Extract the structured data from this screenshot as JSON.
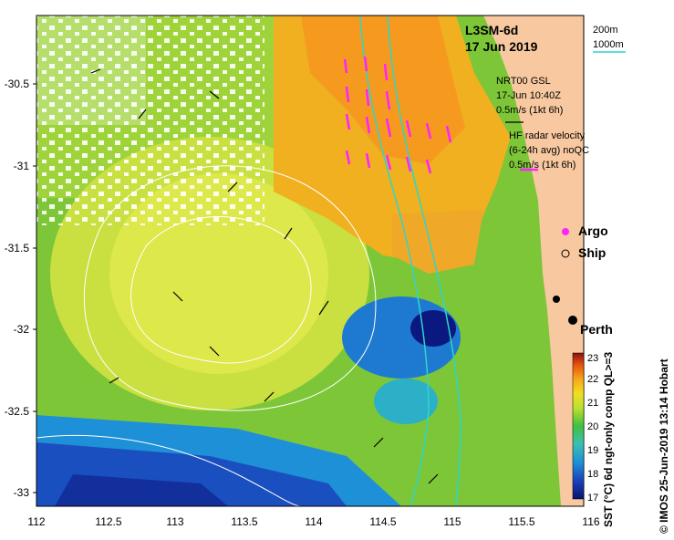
{
  "map": {
    "title": "L3SM-6d",
    "date": "17 Jun 2019",
    "x_ticks": [
      "112",
      "112.5",
      "113",
      "113.5",
      "114",
      "114.5",
      "115",
      "115.5",
      "116"
    ],
    "y_ticks": [
      "-30.5",
      "-31",
      "-31.5",
      "-32",
      "-32.5",
      "-33"
    ],
    "isobath_labels": [
      "200m",
      "1000m"
    ],
    "isobath_colors": [
      "#ffffff",
      "#2fd6c8"
    ],
    "gsl_label": "NRT00 GSL",
    "gsl_time": "17-Jun 10:40Z",
    "gsl_scale": "0.5m/s (1kt 6h)",
    "hf_label_1": "HF radar velocity",
    "hf_label_2": "(6-24h avg) noQC",
    "hf_scale": "0.5m/s (1kt 6h)",
    "hf_color": "#ff22ff",
    "legend_argo": "Argo",
    "legend_ship": "Ship",
    "city": "Perth",
    "colorbar_label": "SST (°C) 6d ngt-only comp QL>=3",
    "colorbar_ticks": [
      "17",
      "18",
      "19",
      "20",
      "21",
      "22",
      "23"
    ],
    "copyright": "© IMOS 25-Jun-2019 13:14 Hobart",
    "land_color": "#f8c9a0"
  }
}
